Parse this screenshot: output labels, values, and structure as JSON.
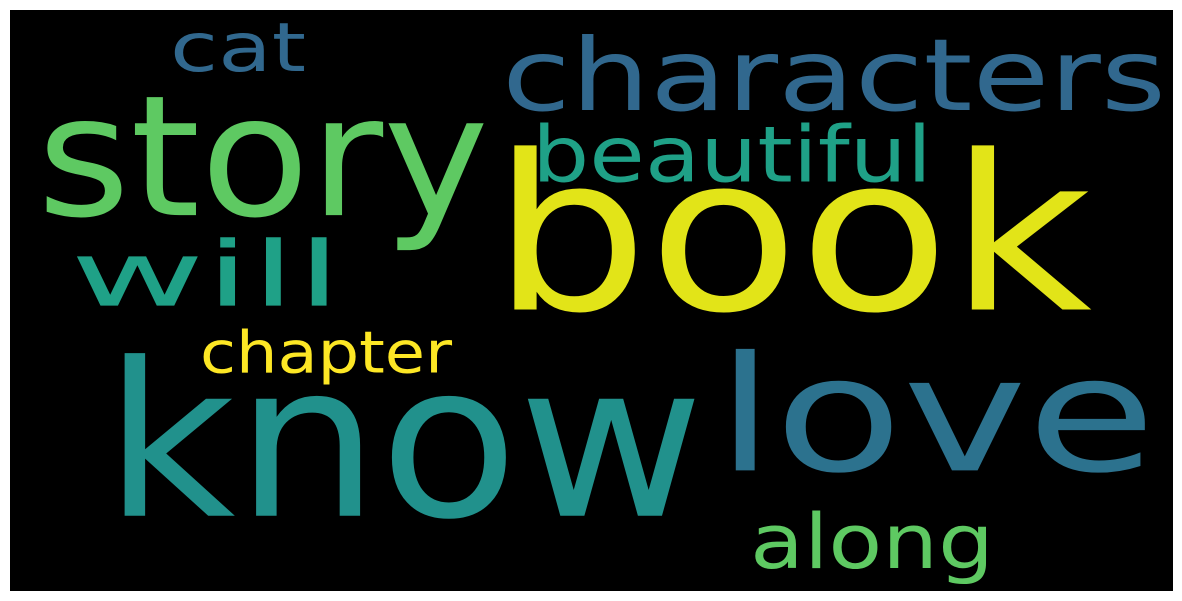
{
  "wordcloud": {
    "background": "#000000",
    "words": [
      {
        "text": "book",
        "color": "#e2e418"
      },
      {
        "text": "know",
        "color": "#21918c"
      },
      {
        "text": "love",
        "color": "#2c728e"
      },
      {
        "text": "story",
        "color": "#5ec962"
      },
      {
        "text": "characters",
        "color": "#31688e"
      },
      {
        "text": "will",
        "color": "#1fa187"
      },
      {
        "text": "beautiful",
        "color": "#1fa187"
      },
      {
        "text": "along",
        "color": "#5ec962"
      },
      {
        "text": "chapter",
        "color": "#fde725"
      },
      {
        "text": "cat",
        "color": "#31688e"
      }
    ]
  }
}
